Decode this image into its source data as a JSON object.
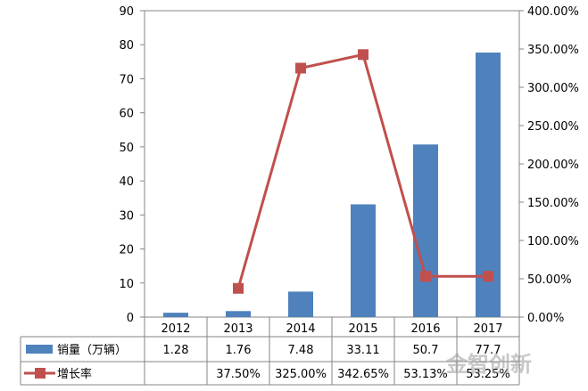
{
  "chart_data": {
    "type": "bar",
    "categories": [
      "2012",
      "2013",
      "2014",
      "2015",
      "2016",
      "2017"
    ],
    "series": [
      {
        "name": "销量（万辆）",
        "type": "bar",
        "axis": "left",
        "color": "#4F81BD",
        "values": [
          1.28,
          1.76,
          7.48,
          33.11,
          50.7,
          77.7
        ],
        "labels": [
          "1.28",
          "1.76",
          "7.48",
          "33.11",
          "50.7",
          "77.7"
        ]
      },
      {
        "name": "增长率",
        "type": "line",
        "axis": "right",
        "color": "#C0504D",
        "values": [
          null,
          37.5,
          325.0,
          342.65,
          53.13,
          53.25
        ],
        "labels": [
          "",
          "37.50%",
          "325.00%",
          "342.65%",
          "53.13%",
          "53.25%"
        ]
      }
    ],
    "y_left": {
      "min": 0,
      "max": 90,
      "ticks": [
        "0",
        "10",
        "20",
        "30",
        "40",
        "50",
        "60",
        "70",
        "80",
        "90"
      ]
    },
    "y_right": {
      "min": 0,
      "max": 400,
      "ticks": [
        "0.00%",
        "50.00%",
        "100.00%",
        "150.00%",
        "200.00%",
        "250.00%",
        "300.00%",
        "350.00%",
        "400.00%"
      ]
    },
    "data_table": true,
    "grid": false,
    "legend": "data-table"
  },
  "watermark": "金智创新"
}
